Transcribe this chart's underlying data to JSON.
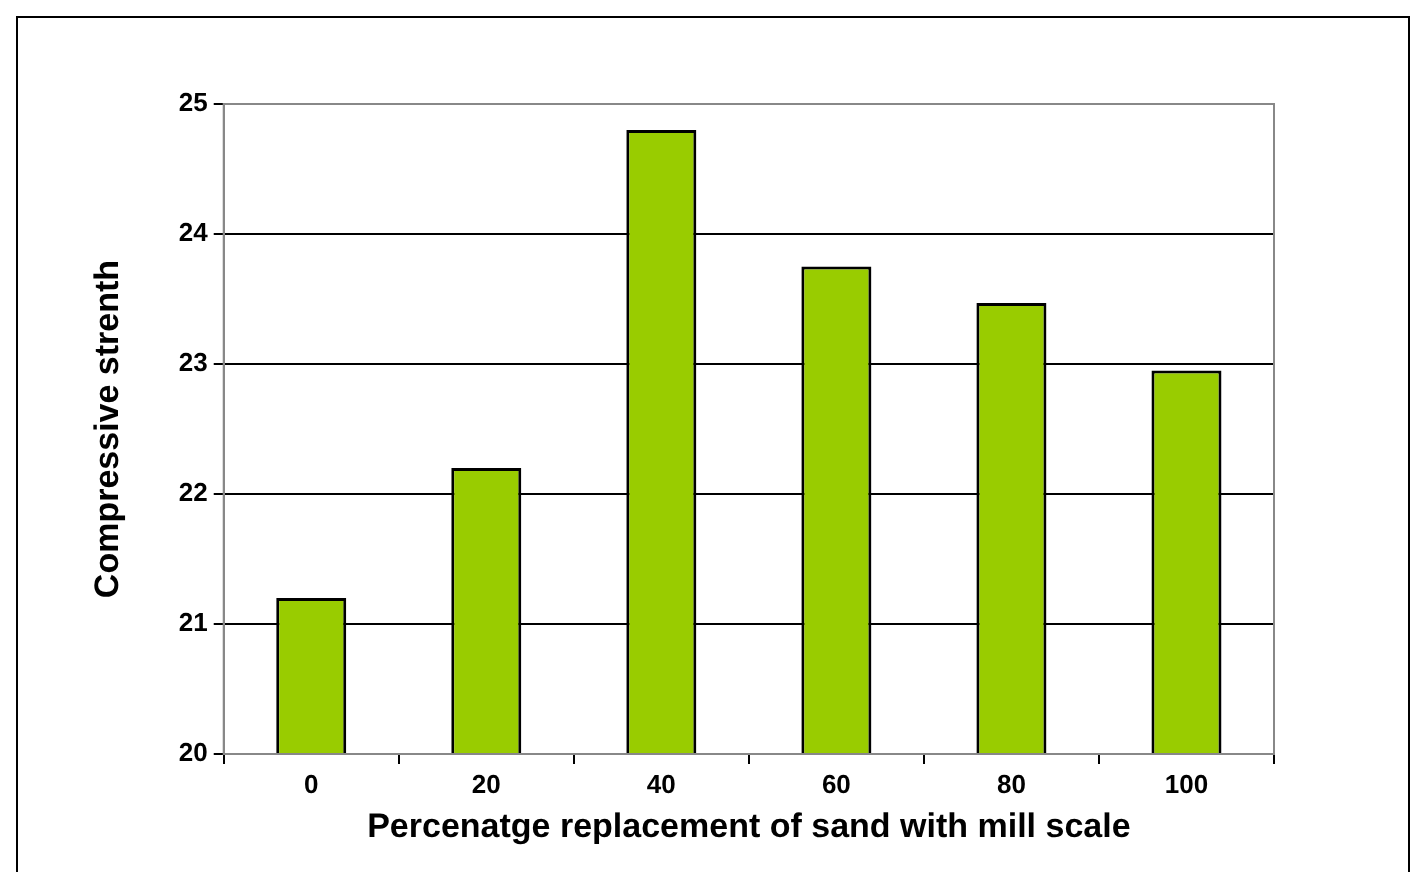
{
  "chart_data": {
    "type": "bar",
    "xlabel": "Percenatge replacement of sand with mill scale",
    "ylabel": "Compressive strenth",
    "categories": [
      "0",
      "20",
      "40",
      "60",
      "80",
      "100"
    ],
    "values": [
      21.2,
      22.2,
      24.8,
      23.75,
      23.47,
      22.95
    ],
    "color": "#99cc00",
    "ylim": [
      20,
      25
    ],
    "yticks": [
      20,
      21,
      22,
      23,
      24,
      25
    ],
    "grid": "y",
    "legend": false
  }
}
